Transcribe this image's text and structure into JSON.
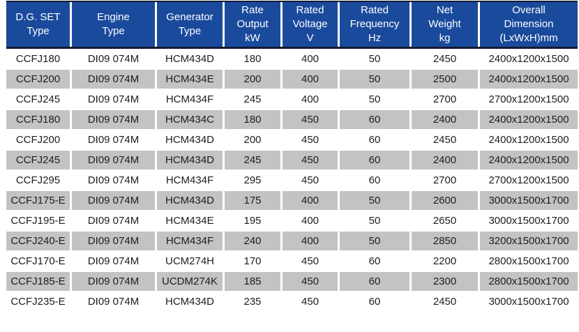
{
  "colors": {
    "header_bg": "#1a4a9c",
    "header_text": "#ffffff",
    "header_border": "#111a33",
    "row_alt_bg": "#c3c3c1",
    "row_text": "#1d1d1d",
    "separator": "#ffffff",
    "page_bg": "#ffffff"
  },
  "table": {
    "headers": [
      "D.G. SET\nType",
      "Engine\nType",
      "Generator\nType",
      "Rate\nOutput\nkW",
      "Rated\nVoltage\nV",
      "Rated\nFrequency\nHz",
      "Net\nWeight\nkg",
      "Overall\nDimension\n(LxWxH)mm"
    ],
    "rows": [
      [
        "CCFJ180",
        "DI09 074M",
        "HCM434D",
        "180",
        "400",
        "50",
        "2450",
        "2400x1200x1500"
      ],
      [
        "CCFJ200",
        "DI09 074M",
        "HCM434E",
        "200",
        "400",
        "50",
        "2500",
        "2400x1200x1500"
      ],
      [
        "CCFJ245",
        "DI09 074M",
        "HCM434F",
        "245",
        "400",
        "50",
        "2700",
        "2700x1200x1500"
      ],
      [
        "CCFJ180",
        "DI09 074M",
        "HCM434C",
        "180",
        "450",
        "60",
        "2400",
        "2400x1200x1500"
      ],
      [
        "CCFJ200",
        "DI09 074M",
        "HCM434D",
        "200",
        "450",
        "60",
        "2450",
        "2400x1200x1500"
      ],
      [
        "CCFJ245",
        "DI09 074M",
        "HCM434D",
        "245",
        "450",
        "60",
        "2400",
        "2400x1200x1500"
      ],
      [
        "CCFJ295",
        "DI09 074M",
        "HCM434F",
        "295",
        "450",
        "60",
        "2700",
        "2700x1200x1500"
      ],
      [
        "CCFJ175-E",
        "DI09 074M",
        "HCM434D",
        "175",
        "400",
        "50",
        "2600",
        "3000x1500x1700"
      ],
      [
        "CCFJ195-E",
        "DI09 074M",
        "HCM434E",
        "195",
        "400",
        "50",
        "2650",
        "3000x1500x1700"
      ],
      [
        "CCFJ240-E",
        "DI09 074M",
        "HCM434F",
        "240",
        "400",
        "50",
        "2850",
        "3200x1500x1700"
      ],
      [
        "CCFJ170-E",
        "DI09 074M",
        "UCM274H",
        "170",
        "450",
        "60",
        "2200",
        "2800x1500x1700"
      ],
      [
        "CCFJ185-E",
        "DI09 074M",
        "UCDM274K",
        "185",
        "450",
        "60",
        "2300",
        "2800x1500x1700"
      ],
      [
        "CCFJ235-E",
        "DI09 074M",
        "HCM434D",
        "235",
        "450",
        "60",
        "2450",
        "3000x1500x1700"
      ]
    ]
  }
}
